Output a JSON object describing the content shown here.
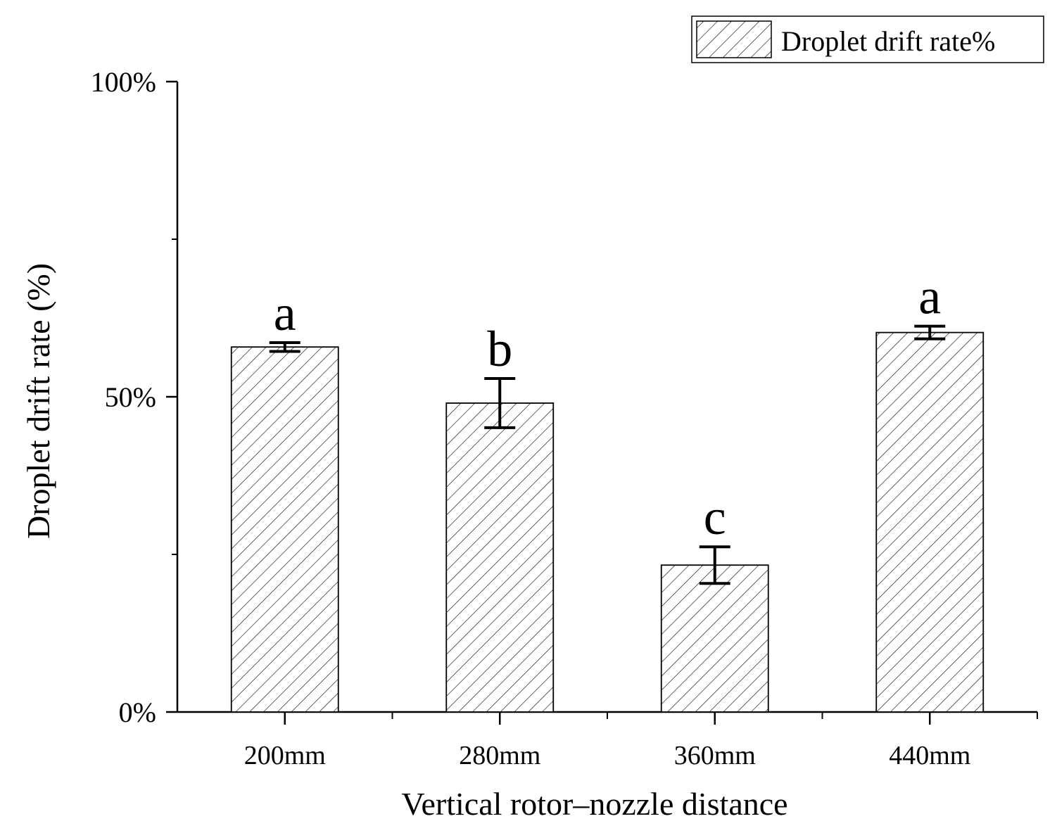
{
  "chart_data": {
    "type": "bar",
    "title": "",
    "xlabel": "Vertical rotor–nozzle distance",
    "ylabel": "Droplet drift rate (%)",
    "ylim": [
      0,
      100
    ],
    "y_ticks": [
      0,
      50,
      100
    ],
    "y_tick_labels": [
      "0%",
      "50%",
      "100%"
    ],
    "categories": [
      "200mm",
      "280mm",
      "360mm",
      "440mm"
    ],
    "series": [
      {
        "name": "Droplet drift rate%",
        "values": [
          57.9,
          49.0,
          23.3,
          60.2
        ],
        "errors": [
          0.7,
          3.9,
          2.9,
          1.0
        ],
        "significance": [
          "a",
          "b",
          "c",
          "a"
        ],
        "pattern": "diagonal-hatch"
      }
    ],
    "legend": {
      "position": "top-right",
      "label": "Droplet drift rate%"
    },
    "grid": false
  },
  "colors": {
    "axis": "#000000",
    "bar_fill": "#ffffff",
    "hatch": "#000000"
  }
}
